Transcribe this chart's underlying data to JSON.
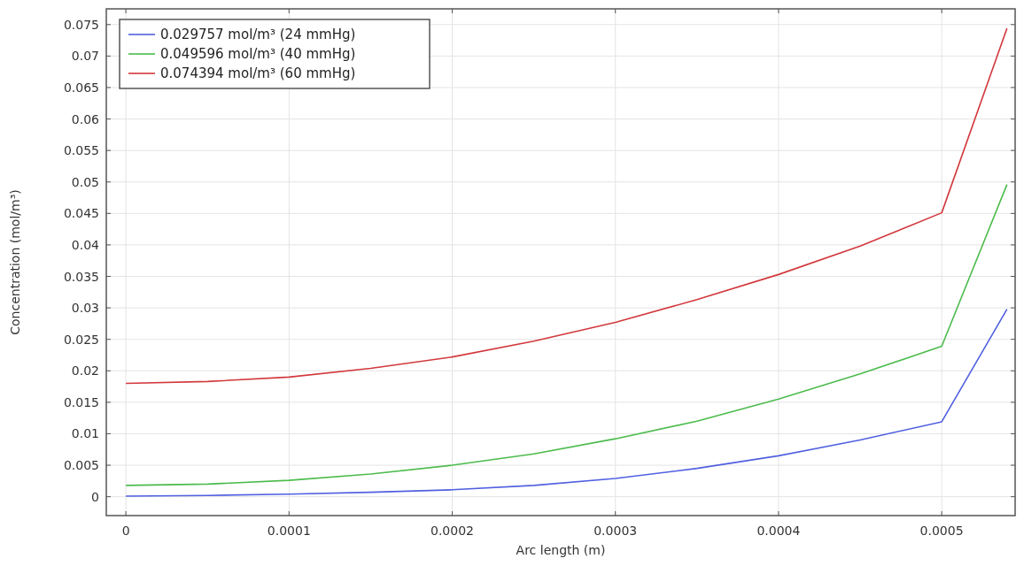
{
  "chart_data": {
    "type": "line",
    "xlabel": "Arc length (m)",
    "ylabel": "Concentration (mol/m³)",
    "x": [
      0,
      5e-05,
      0.0001,
      0.00015,
      0.0002,
      0.00025,
      0.0003,
      0.00035,
      0.0004,
      0.00045,
      0.0005,
      0.00054
    ],
    "series": [
      {
        "name": "0.029757 mol/m³ (24 mmHg)",
        "color": "#5060e0",
        "values": [
          0.0001,
          0.0002,
          0.0004,
          0.0007,
          0.0011,
          0.0018,
          0.0029,
          0.0045,
          0.0065,
          0.009,
          0.0119,
          0.0298
        ]
      },
      {
        "name": "0.049596 mol/m³ (40 mmHg)",
        "color": "#4cbb4c",
        "values": [
          0.0018,
          0.002,
          0.0026,
          0.0036,
          0.005,
          0.0068,
          0.0092,
          0.012,
          0.0155,
          0.0195,
          0.0239,
          0.0496
        ]
      },
      {
        "name": "0.074394 mol/m³ (60 mmHg)",
        "color": "#d2383c",
        "values": [
          0.018,
          0.0183,
          0.019,
          0.0204,
          0.0222,
          0.0247,
          0.0277,
          0.0313,
          0.0353,
          0.0398,
          0.0451,
          0.0744
        ]
      }
    ],
    "xlim": [
      -1.2e-05,
      0.000545
    ],
    "xticks": [
      0,
      0.0001,
      0.0002,
      0.0003,
      0.0004,
      0.0005
    ],
    "ylim": [
      -0.003,
      0.0775
    ],
    "yticks": [
      0,
      0.005,
      0.01,
      0.015,
      0.02,
      0.025,
      0.03,
      0.035,
      0.04,
      0.045,
      0.05,
      0.055,
      0.06,
      0.065,
      0.07,
      0.075
    ],
    "grid": true,
    "legend": "top left",
    "marker": "none",
    "line_style": "solid"
  }
}
